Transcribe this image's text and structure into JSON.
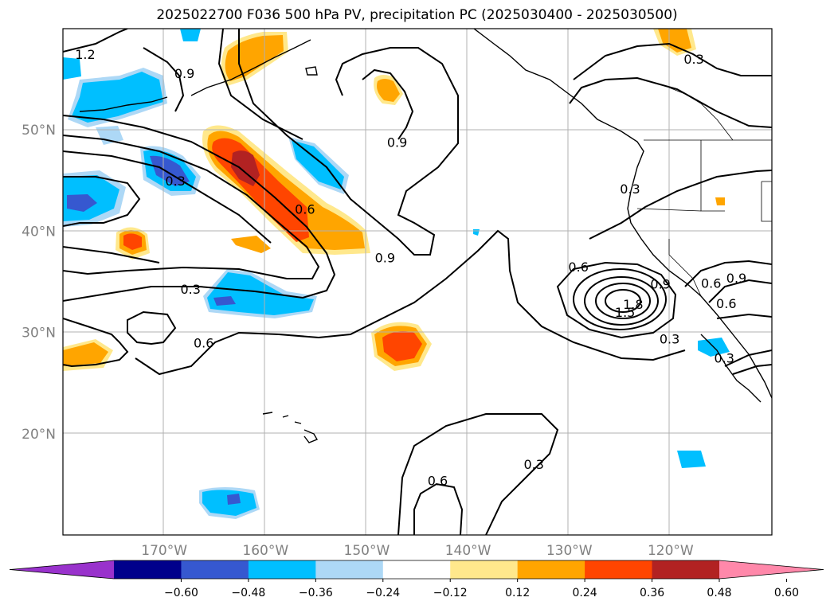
{
  "title": "2025022700 F036 500 hPa PV, precipitation PC (2025030400 - 2025030500)",
  "lat_ticks": [
    {
      "label": "50°N",
      "lat": 50
    },
    {
      "label": "40°N",
      "lat": 40
    },
    {
      "label": "30°N",
      "lat": 30
    },
    {
      "label": "20°N",
      "lat": 20
    }
  ],
  "lon_ticks": [
    {
      "label": "170°W",
      "lon": -170
    },
    {
      "label": "160°W",
      "lon": -160
    },
    {
      "label": "150°W",
      "lon": -150
    },
    {
      "label": "140°W",
      "lon": -140
    },
    {
      "label": "130°W",
      "lon": -130
    },
    {
      "label": "120°W",
      "lon": -120
    }
  ],
  "contour_labels": [
    {
      "text": "1.2",
      "lon": -177.8,
      "lat": 57.1
    },
    {
      "text": "0.9",
      "lon": -168.0,
      "lat": 55.2
    },
    {
      "text": "0.9",
      "lon": -147.0,
      "lat": 48.4
    },
    {
      "text": "0.3",
      "lon": -168.9,
      "lat": 44.6
    },
    {
      "text": "0.6",
      "lon": -156.1,
      "lat": 41.8
    },
    {
      "text": "0.9",
      "lon": -148.2,
      "lat": 37.0
    },
    {
      "text": "0.3",
      "lon": -167.4,
      "lat": 33.9
    },
    {
      "text": "0.6",
      "lon": -166.1,
      "lat": 28.6
    },
    {
      "text": "0.6",
      "lon": -143.0,
      "lat": 15.0
    },
    {
      "text": "0.3",
      "lon": -133.5,
      "lat": 16.6
    },
    {
      "text": "0.6",
      "lon": -129.1,
      "lat": 36.1
    },
    {
      "text": "0.9",
      "lon": -121.0,
      "lat": 34.4
    },
    {
      "text": "1.5",
      "lon": -124.5,
      "lat": 31.6
    },
    {
      "text": "1.8",
      "lon": -123.7,
      "lat": 32.4
    },
    {
      "text": "0.3",
      "lon": -124.0,
      "lat": 43.8
    },
    {
      "text": "0.3",
      "lon": -120.1,
      "lat": 29.0
    },
    {
      "text": "0.3",
      "lon": -117.7,
      "lat": 56.6
    },
    {
      "text": "0.6",
      "lon": -116.0,
      "lat": 34.5
    },
    {
      "text": "0.9",
      "lon": -113.5,
      "lat": 35.0
    },
    {
      "text": "0.6",
      "lon": -114.5,
      "lat": 32.5
    },
    {
      "text": "0.3",
      "lon": -114.7,
      "lat": 27.1
    }
  ],
  "colorbar": {
    "tick_labels": [
      "−0.60",
      "−0.48",
      "−0.36",
      "−0.24",
      "−0.12",
      "0.12",
      "0.24",
      "0.36",
      "0.48",
      "0.60"
    ],
    "colors": [
      "#9932cc",
      "#00008b",
      "#3658d0",
      "#00bfff",
      "#add8f6",
      "#ffffff",
      "#ffe88c",
      "#ffa500",
      "#ff4500",
      "#b22222",
      "#ff88aa"
    ]
  }
}
